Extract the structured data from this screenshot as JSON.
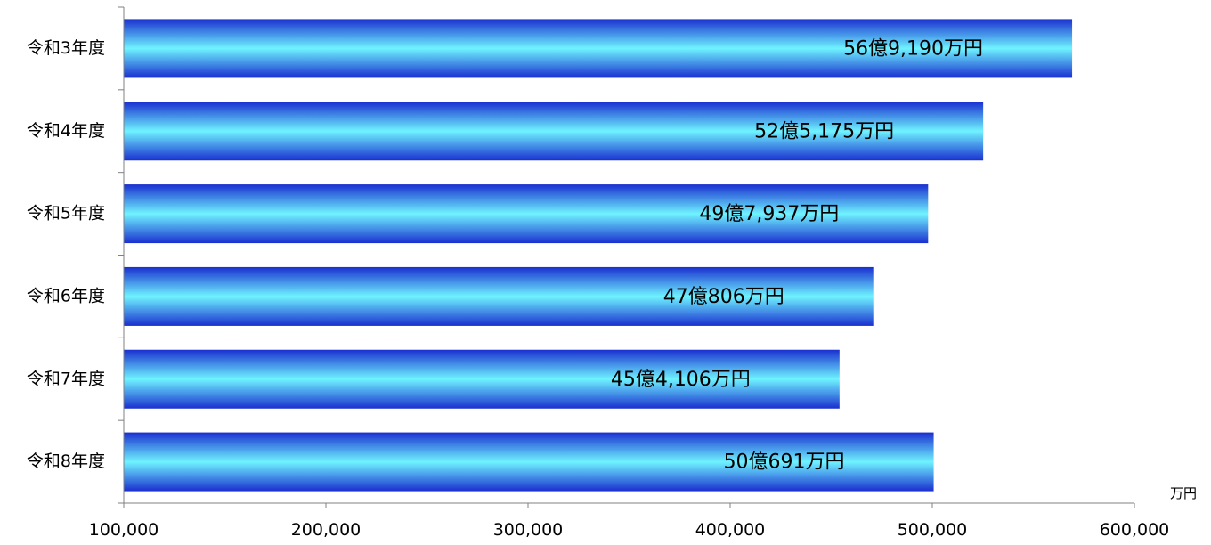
{
  "chart_data": {
    "type": "bar",
    "orientation": "horizontal",
    "categories": [
      "令和3年度",
      "令和4年度",
      "令和5年度",
      "令和6年度",
      "令和7年度",
      "令和8年度"
    ],
    "values": [
      569190,
      525175,
      497937,
      470806,
      454106,
      500691
    ],
    "data_labels": [
      "56億9,190万円",
      "52億5,175万円",
      "49億7,937万円",
      "47億806万円",
      "45億4,106万円",
      "50億691万円"
    ],
    "unit_label": "万円",
    "xlim": [
      100000,
      600000
    ],
    "x_ticks": [
      100000,
      200000,
      300000,
      400000,
      500000,
      600000
    ],
    "x_tick_labels": [
      "100,000",
      "200,000",
      "300,000",
      "400,000",
      "500,000",
      "600,000"
    ],
    "grid": false,
    "legend": "none",
    "colors": {
      "bar_edge": "#1a2fd0",
      "bar_center": "#6ff3ff",
      "axis": "#808080",
      "text": "#000000"
    }
  }
}
